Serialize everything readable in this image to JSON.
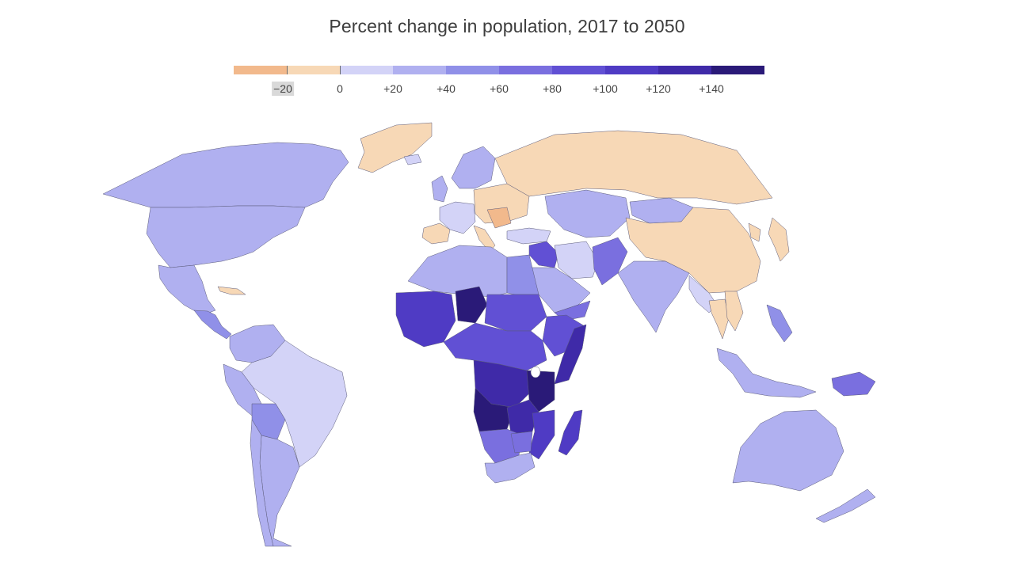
{
  "title": "Percent change in population, 2017 to 2050",
  "legend": {
    "bins": [
      {
        "from": -30,
        "to": -20,
        "color": "#f2b98c"
      },
      {
        "from": -20,
        "to": 0,
        "color": "#f7d8b6"
      },
      {
        "from": 0,
        "to": 20,
        "color": "#d3d3f7"
      },
      {
        "from": 20,
        "to": 40,
        "color": "#b0b0f0"
      },
      {
        "from": 40,
        "to": 60,
        "color": "#9090e8"
      },
      {
        "from": 60,
        "to": 80,
        "color": "#7a6fdf"
      },
      {
        "from": 80,
        "to": 100,
        "color": "#6150d4"
      },
      {
        "from": 100,
        "to": 120,
        "color": "#4f3bc4"
      },
      {
        "from": 120,
        "to": 140,
        "color": "#3f2aa8"
      },
      {
        "from": 140,
        "to": 160,
        "color": "#2a1a78"
      }
    ],
    "labels": [
      {
        "text": "−20",
        "value": -20,
        "highlight": true
      },
      {
        "text": "0",
        "value": 0
      },
      {
        "text": "+20",
        "value": 20
      },
      {
        "text": "+40",
        "value": 40
      },
      {
        "text": "+60",
        "value": 60
      },
      {
        "text": "+80",
        "value": 80
      },
      {
        "text": "+100",
        "value": 100
      },
      {
        "text": "+120",
        "value": 120
      },
      {
        "text": "+140",
        "value": 140
      }
    ]
  },
  "map": {
    "regions": [
      {
        "id": "greenland",
        "bin": 1
      },
      {
        "id": "canada",
        "bin": 3
      },
      {
        "id": "united-states",
        "bin": 3
      },
      {
        "id": "mexico",
        "bin": 3
      },
      {
        "id": "central-america",
        "bin": 4
      },
      {
        "id": "cuba",
        "bin": 1
      },
      {
        "id": "colombia-venezuela",
        "bin": 3
      },
      {
        "id": "brazil",
        "bin": 2
      },
      {
        "id": "peru",
        "bin": 3
      },
      {
        "id": "bolivia",
        "bin": 4
      },
      {
        "id": "argentina",
        "bin": 3
      },
      {
        "id": "chile",
        "bin": 3
      },
      {
        "id": "iceland",
        "bin": 2
      },
      {
        "id": "uk-ireland",
        "bin": 3
      },
      {
        "id": "scandinavia",
        "bin": 3
      },
      {
        "id": "western-europe",
        "bin": 2
      },
      {
        "id": "iberia",
        "bin": 1
      },
      {
        "id": "italy",
        "bin": 1
      },
      {
        "id": "eastern-europe",
        "bin": 1
      },
      {
        "id": "romania-bulgaria",
        "bin": 0
      },
      {
        "id": "russia",
        "bin": 1
      },
      {
        "id": "kazakhstan-central-asia",
        "bin": 3
      },
      {
        "id": "turkey",
        "bin": 2
      },
      {
        "id": "mongolia",
        "bin": 3
      },
      {
        "id": "china",
        "bin": 1
      },
      {
        "id": "japan",
        "bin": 1
      },
      {
        "id": "korea",
        "bin": 1
      },
      {
        "id": "north-africa",
        "bin": 3
      },
      {
        "id": "egypt",
        "bin": 4
      },
      {
        "id": "iraq-syria",
        "bin": 6
      },
      {
        "id": "iran",
        "bin": 2
      },
      {
        "id": "saudi-arabia",
        "bin": 3
      },
      {
        "id": "yemen",
        "bin": 5
      },
      {
        "id": "afghanistan-pakistan",
        "bin": 5
      },
      {
        "id": "india",
        "bin": 3
      },
      {
        "id": "southeast-asia",
        "bin": 2
      },
      {
        "id": "thailand",
        "bin": 1
      },
      {
        "id": "vietnam",
        "bin": 1
      },
      {
        "id": "philippines",
        "bin": 4
      },
      {
        "id": "indonesia",
        "bin": 3
      },
      {
        "id": "papua-new-guinea",
        "bin": 5
      },
      {
        "id": "australia",
        "bin": 3
      },
      {
        "id": "new-zealand",
        "bin": 3
      },
      {
        "id": "west-africa",
        "bin": 7
      },
      {
        "id": "niger",
        "bin": 9
      },
      {
        "id": "sahel",
        "bin": 6
      },
      {
        "id": "central-africa",
        "bin": 6
      },
      {
        "id": "horn-of-africa",
        "bin": 6
      },
      {
        "id": "somalia",
        "bin": 8
      },
      {
        "id": "congo",
        "bin": 8
      },
      {
        "id": "tanzania",
        "bin": 9
      },
      {
        "id": "angola",
        "bin": 9
      },
      {
        "id": "zambia",
        "bin": 8
      },
      {
        "id": "mozambique",
        "bin": 7
      },
      {
        "id": "namibia-botswana",
        "bin": 5
      },
      {
        "id": "zimbabwe",
        "bin": 5
      },
      {
        "id": "south-africa",
        "bin": 3
      },
      {
        "id": "madagascar",
        "bin": 7
      }
    ]
  }
}
